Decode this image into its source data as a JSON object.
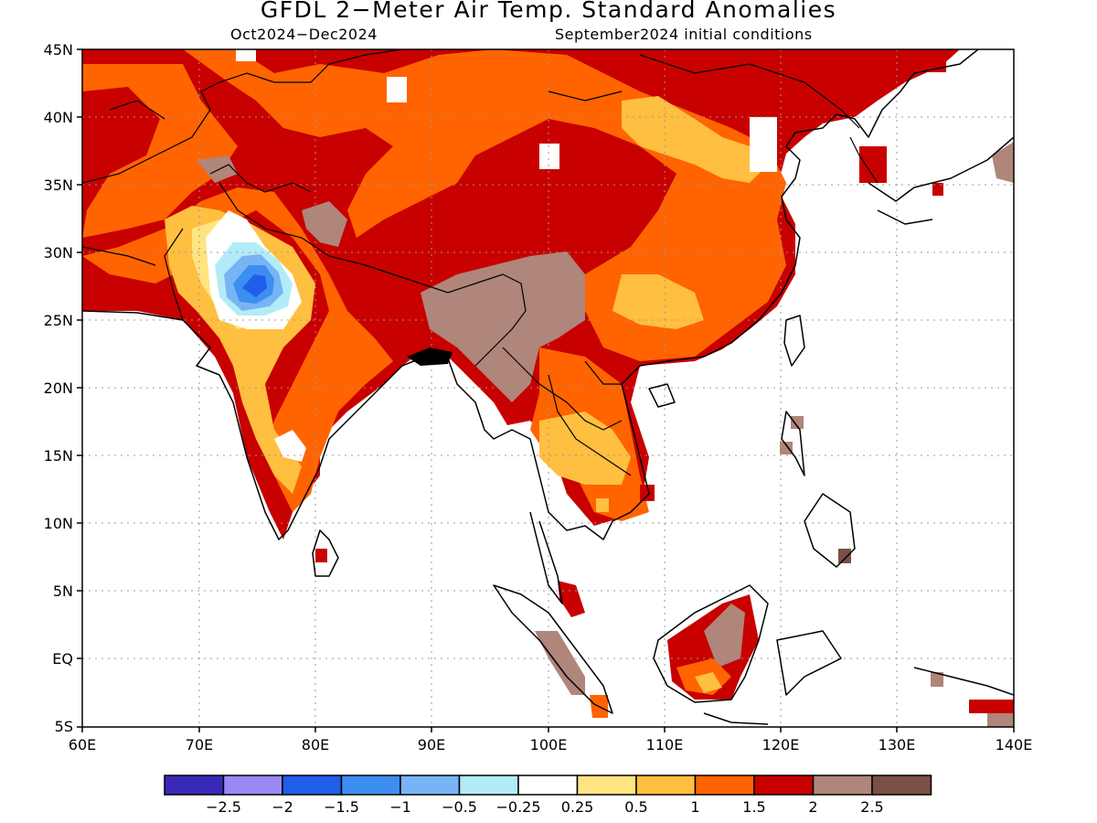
{
  "title": "GFDL 2−Meter Air Temp. Standard Anomalies",
  "subtitle_left": "Oct2024−Dec2024",
  "subtitle_right": "September2024 initial conditions",
  "lat_ticks": [
    "45N",
    "40N",
    "35N",
    "30N",
    "25N",
    "20N",
    "15N",
    "10N",
    "5N",
    "EQ",
    "5S"
  ],
  "lon_ticks": [
    "60E",
    "70E",
    "80E",
    "90E",
    "100E",
    "110E",
    "120E",
    "130E",
    "140E"
  ],
  "colorbar": {
    "colors": [
      "#3a28b8",
      "#9a88f5",
      "#1e5ee8",
      "#3c8ef0",
      "#78b4f5",
      "#b2ecf8",
      "#ffffff",
      "#ffe480",
      "#ffbf40",
      "#ff6400",
      "#c80000",
      "#b0857a",
      "#7a5044"
    ],
    "labels": [
      "−2.5",
      "−2",
      "−1.5",
      "−1",
      "−0.5",
      "−0.25",
      "0.25",
      "0.5",
      "1",
      "1.5",
      "2",
      "2.5"
    ]
  }
}
